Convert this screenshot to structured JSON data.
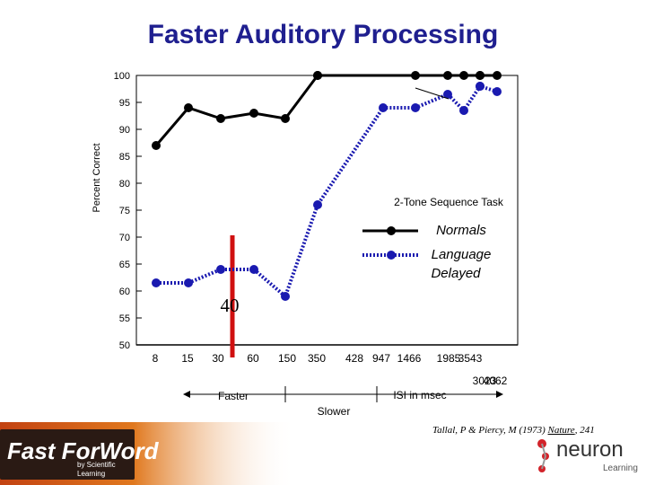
{
  "slide": {
    "title": "Faster Auditory Processing",
    "citation": {
      "authors": "Tallal, P & Piercy, M (1973)",
      "journal": "Nature",
      "pages": ", 241"
    },
    "logos": {
      "left": "Fast ForWord by Scientific Learning",
      "right": "neuron Learning"
    },
    "colors": {
      "title": "#1f1f8f",
      "normals": "#000000",
      "language_delayed": "#1a1ab0",
      "highlight": "#d01010"
    }
  },
  "chart_data": {
    "type": "line",
    "title": "",
    "task_label": "2-Tone Sequence Task",
    "xlabel": "ISI in msec",
    "ylabel": "Percent Correct",
    "ylim": [
      50,
      100
    ],
    "yticks": [
      100,
      95,
      90,
      85,
      80,
      75,
      70,
      65,
      60,
      55,
      50
    ],
    "categories": [
      "8",
      "15",
      "30",
      "60",
      "150",
      "350",
      "428",
      "947",
      "1466",
      "1985",
      "3023",
      "3543",
      "4062"
    ],
    "series": [
      {
        "name": "Normals",
        "style": "solid",
        "color": "#000000",
        "points": [
          [
            5,
            100
          ],
          [
            7,
            100
          ],
          [
            8,
            100
          ],
          [
            9,
            100
          ],
          [
            10,
            100
          ],
          [
            11,
            100
          ],
          [
            12,
            100
          ]
        ]
      },
      {
        "name": "Language Delayed",
        "style": "dotted",
        "color": "#1a1ab0",
        "points": [
          [
            0,
            61.5
          ],
          [
            1,
            61.5
          ],
          [
            2,
            64
          ],
          [
            3,
            64
          ],
          [
            4,
            59
          ],
          [
            5,
            76
          ],
          [
            6,
            94
          ],
          [
            7,
            94
          ],
          [
            8,
            96.5
          ],
          [
            9,
            93.5
          ],
          [
            10,
            98
          ],
          [
            11,
            98
          ],
          [
            12,
            97
          ]
        ]
      }
    ],
    "extra_line": [
      {
        "name": "",
        "style": "solid",
        "color": "#000000",
        "points": [
          [
            0,
            87
          ],
          [
            1,
            94
          ],
          [
            2,
            92
          ],
          [
            3,
            93
          ],
          [
            4,
            92
          ],
          [
            5,
            100
          ]
        ]
      }
    ],
    "highlight": {
      "category_index": 2,
      "value_label": "40"
    },
    "annotations": {
      "faster": "Faster",
      "slower": "Slower"
    },
    "legend": {
      "placement": "right-middle"
    },
    "grid": false
  }
}
